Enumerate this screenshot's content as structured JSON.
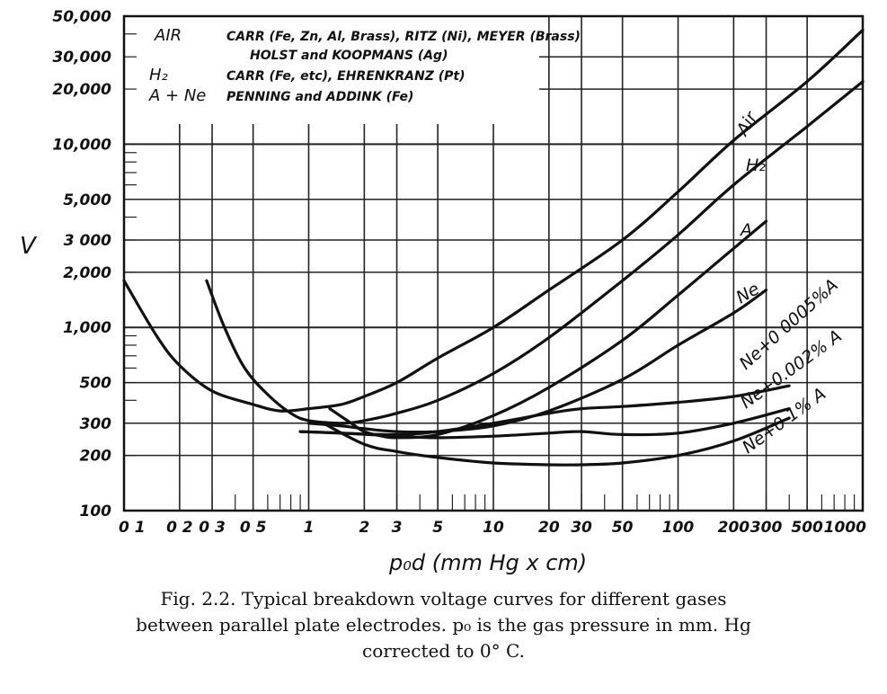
{
  "chart_data": {
    "type": "line",
    "title": "",
    "xlabel": "p₀d (mm Hg x cm)",
    "ylabel": "V",
    "x_scale": "log",
    "y_scale": "log",
    "xlim": [
      0.1,
      1000
    ],
    "ylim": [
      100,
      50000
    ],
    "grid": true,
    "x_ticks": [
      {
        "value": 0.1,
        "label": "0 1"
      },
      {
        "value": 0.2,
        "label": "0 2"
      },
      {
        "value": 0.3,
        "label": "0 3"
      },
      {
        "value": 0.5,
        "label": "0 5"
      },
      {
        "value": 1,
        "label": "1"
      },
      {
        "value": 2,
        "label": "2"
      },
      {
        "value": 3,
        "label": "3"
      },
      {
        "value": 5,
        "label": "5"
      },
      {
        "value": 10,
        "label": "10"
      },
      {
        "value": 20,
        "label": "20"
      },
      {
        "value": 30,
        "label": "30"
      },
      {
        "value": 50,
        "label": "50"
      },
      {
        "value": 100,
        "label": "100"
      },
      {
        "value": 200,
        "label": "200"
      },
      {
        "value": 300,
        "label": "300"
      },
      {
        "value": 500,
        "label": "500"
      },
      {
        "value": 1000,
        "label": "1000"
      }
    ],
    "y_ticks": [
      {
        "value": 100,
        "label": "100"
      },
      {
        "value": 200,
        "label": "200"
      },
      {
        "value": 300,
        "label": "300"
      },
      {
        "value": 500,
        "label": "500"
      },
      {
        "value": 1000,
        "label": "1,000"
      },
      {
        "value": 2000,
        "label": "2,000"
      },
      {
        "value": 3000,
        "label": "3 000"
      },
      {
        "value": 5000,
        "label": "5,000"
      },
      {
        "value": 10000,
        "label": "10,000"
      },
      {
        "value": 20000,
        "label": "20,000"
      },
      {
        "value": 30000,
        "label": "30,000"
      },
      {
        "value": 50000,
        "label": "50,000"
      }
    ],
    "series": [
      {
        "name": "Air",
        "points": [
          [
            0.1,
            1800
          ],
          [
            0.15,
            900
          ],
          [
            0.2,
            620
          ],
          [
            0.3,
            450
          ],
          [
            0.5,
            380
          ],
          [
            0.7,
            350
          ],
          [
            1,
            360
          ],
          [
            1.5,
            380
          ],
          [
            2,
            420
          ],
          [
            3,
            500
          ],
          [
            5,
            680
          ],
          [
            10,
            1000
          ],
          [
            20,
            1600
          ],
          [
            50,
            3000
          ],
          [
            100,
            5500
          ],
          [
            200,
            10500
          ],
          [
            500,
            22000
          ],
          [
            1000,
            42000
          ]
        ]
      },
      {
        "name": "H₂",
        "points": [
          [
            0.28,
            1800
          ],
          [
            0.35,
            1000
          ],
          [
            0.45,
            600
          ],
          [
            0.6,
            430
          ],
          [
            0.8,
            340
          ],
          [
            1,
            310
          ],
          [
            1.5,
            300
          ],
          [
            2,
            310
          ],
          [
            3,
            340
          ],
          [
            5,
            400
          ],
          [
            10,
            560
          ],
          [
            20,
            880
          ],
          [
            50,
            1800
          ],
          [
            100,
            3200
          ],
          [
            200,
            6000
          ],
          [
            500,
            12500
          ],
          [
            1000,
            22000
          ]
        ]
      },
      {
        "name": "A",
        "points": [
          [
            1.3,
            360
          ],
          [
            1.7,
            300
          ],
          [
            2,
            270
          ],
          [
            2.5,
            255
          ],
          [
            3,
            250
          ],
          [
            5,
            260
          ],
          [
            10,
            330
          ],
          [
            20,
            470
          ],
          [
            50,
            850
          ],
          [
            100,
            1500
          ],
          [
            200,
            2700
          ],
          [
            300,
            3800
          ]
        ]
      },
      {
        "name": "Ne",
        "points": [
          [
            1,
            300
          ],
          [
            1.5,
            290
          ],
          [
            2,
            280
          ],
          [
            3,
            270
          ],
          [
            5,
            270
          ],
          [
            10,
            290
          ],
          [
            20,
            350
          ],
          [
            50,
            520
          ],
          [
            100,
            800
          ],
          [
            200,
            1200
          ],
          [
            300,
            1600
          ]
        ]
      },
      {
        "name": "Ne+0 0005%A",
        "points": [
          [
            0.9,
            270
          ],
          [
            1.5,
            265
          ],
          [
            3,
            260
          ],
          [
            5,
            270
          ],
          [
            10,
            300
          ],
          [
            20,
            340
          ],
          [
            30,
            360
          ],
          [
            50,
            370
          ],
          [
            100,
            390
          ],
          [
            200,
            420
          ],
          [
            400,
            480
          ]
        ]
      },
      {
        "name": "Ne+0.002% A",
        "points": [
          [
            0.9,
            270
          ],
          [
            1.5,
            265
          ],
          [
            3,
            255
          ],
          [
            5,
            250
          ],
          [
            10,
            255
          ],
          [
            20,
            265
          ],
          [
            30,
            270
          ],
          [
            50,
            260
          ],
          [
            100,
            265
          ],
          [
            200,
            300
          ],
          [
            400,
            360
          ]
        ]
      },
      {
        "name": "Ne+0 1% A",
        "points": [
          [
            1.2,
            300
          ],
          [
            2,
            230
          ],
          [
            3,
            210
          ],
          [
            5,
            195
          ],
          [
            10,
            182
          ],
          [
            20,
            178
          ],
          [
            30,
            178
          ],
          [
            50,
            182
          ],
          [
            100,
            200
          ],
          [
            200,
            240
          ],
          [
            400,
            320
          ]
        ]
      }
    ],
    "annotations": [
      {
        "gas": "AIR",
        "ref": "CARR (Fe, Zn, Al, Brass), RITZ (Ni), MEYER (Brass)"
      },
      {
        "gas": "",
        "ref": "HOLST and KOOPMANS (Ag)"
      },
      {
        "gas": "H₂",
        "ref": "CARR (Fe, etc), EHRENKRANZ (Pt)"
      },
      {
        "gas": "A + Ne",
        "ref": "PENNING and ADDINK (Fe)"
      }
    ]
  },
  "caption": {
    "line1": "Fig. 2.2.  Typical breakdown voltage curves for different gases",
    "line2": "between parallel plate electrodes.  p₀ is the gas pressure in mm. Hg",
    "line3": "corrected to 0° C."
  }
}
